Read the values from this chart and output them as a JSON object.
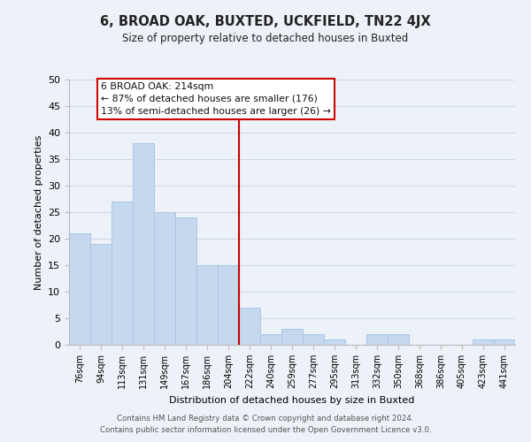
{
  "title": "6, BROAD OAK, BUXTED, UCKFIELD, TN22 4JX",
  "subtitle": "Size of property relative to detached houses in Buxted",
  "xlabel": "Distribution of detached houses by size in Buxted",
  "ylabel": "Number of detached properties",
  "bar_color": "#c5d8ed",
  "bar_edge_color": "#a8c8e8",
  "bin_labels": [
    "76sqm",
    "94sqm",
    "113sqm",
    "131sqm",
    "149sqm",
    "167sqm",
    "186sqm",
    "204sqm",
    "222sqm",
    "240sqm",
    "259sqm",
    "277sqm",
    "295sqm",
    "313sqm",
    "332sqm",
    "350sqm",
    "368sqm",
    "386sqm",
    "405sqm",
    "423sqm",
    "441sqm"
  ],
  "bar_heights": [
    21,
    19,
    27,
    38,
    25,
    24,
    15,
    15,
    7,
    2,
    3,
    2,
    1,
    0,
    2,
    2,
    0,
    0,
    0,
    1,
    1
  ],
  "ylim": [
    0,
    50
  ],
  "yticks": [
    0,
    5,
    10,
    15,
    20,
    25,
    30,
    35,
    40,
    45,
    50
  ],
  "vline_color": "#cc0000",
  "annotation_line1": "6 BROAD OAK: 214sqm",
  "annotation_line2": "← 87% of detached houses are smaller (176)",
  "annotation_line3": "13% of semi-detached houses are larger (26) →",
  "box_color": "#ffffff",
  "box_edge_color": "#cc0000",
  "footer1": "Contains HM Land Registry data © Crown copyright and database right 2024.",
  "footer2": "Contains public sector information licensed under the Open Government Licence v3.0.",
  "grid_color": "#d0daea",
  "background_color": "#edf1f8"
}
